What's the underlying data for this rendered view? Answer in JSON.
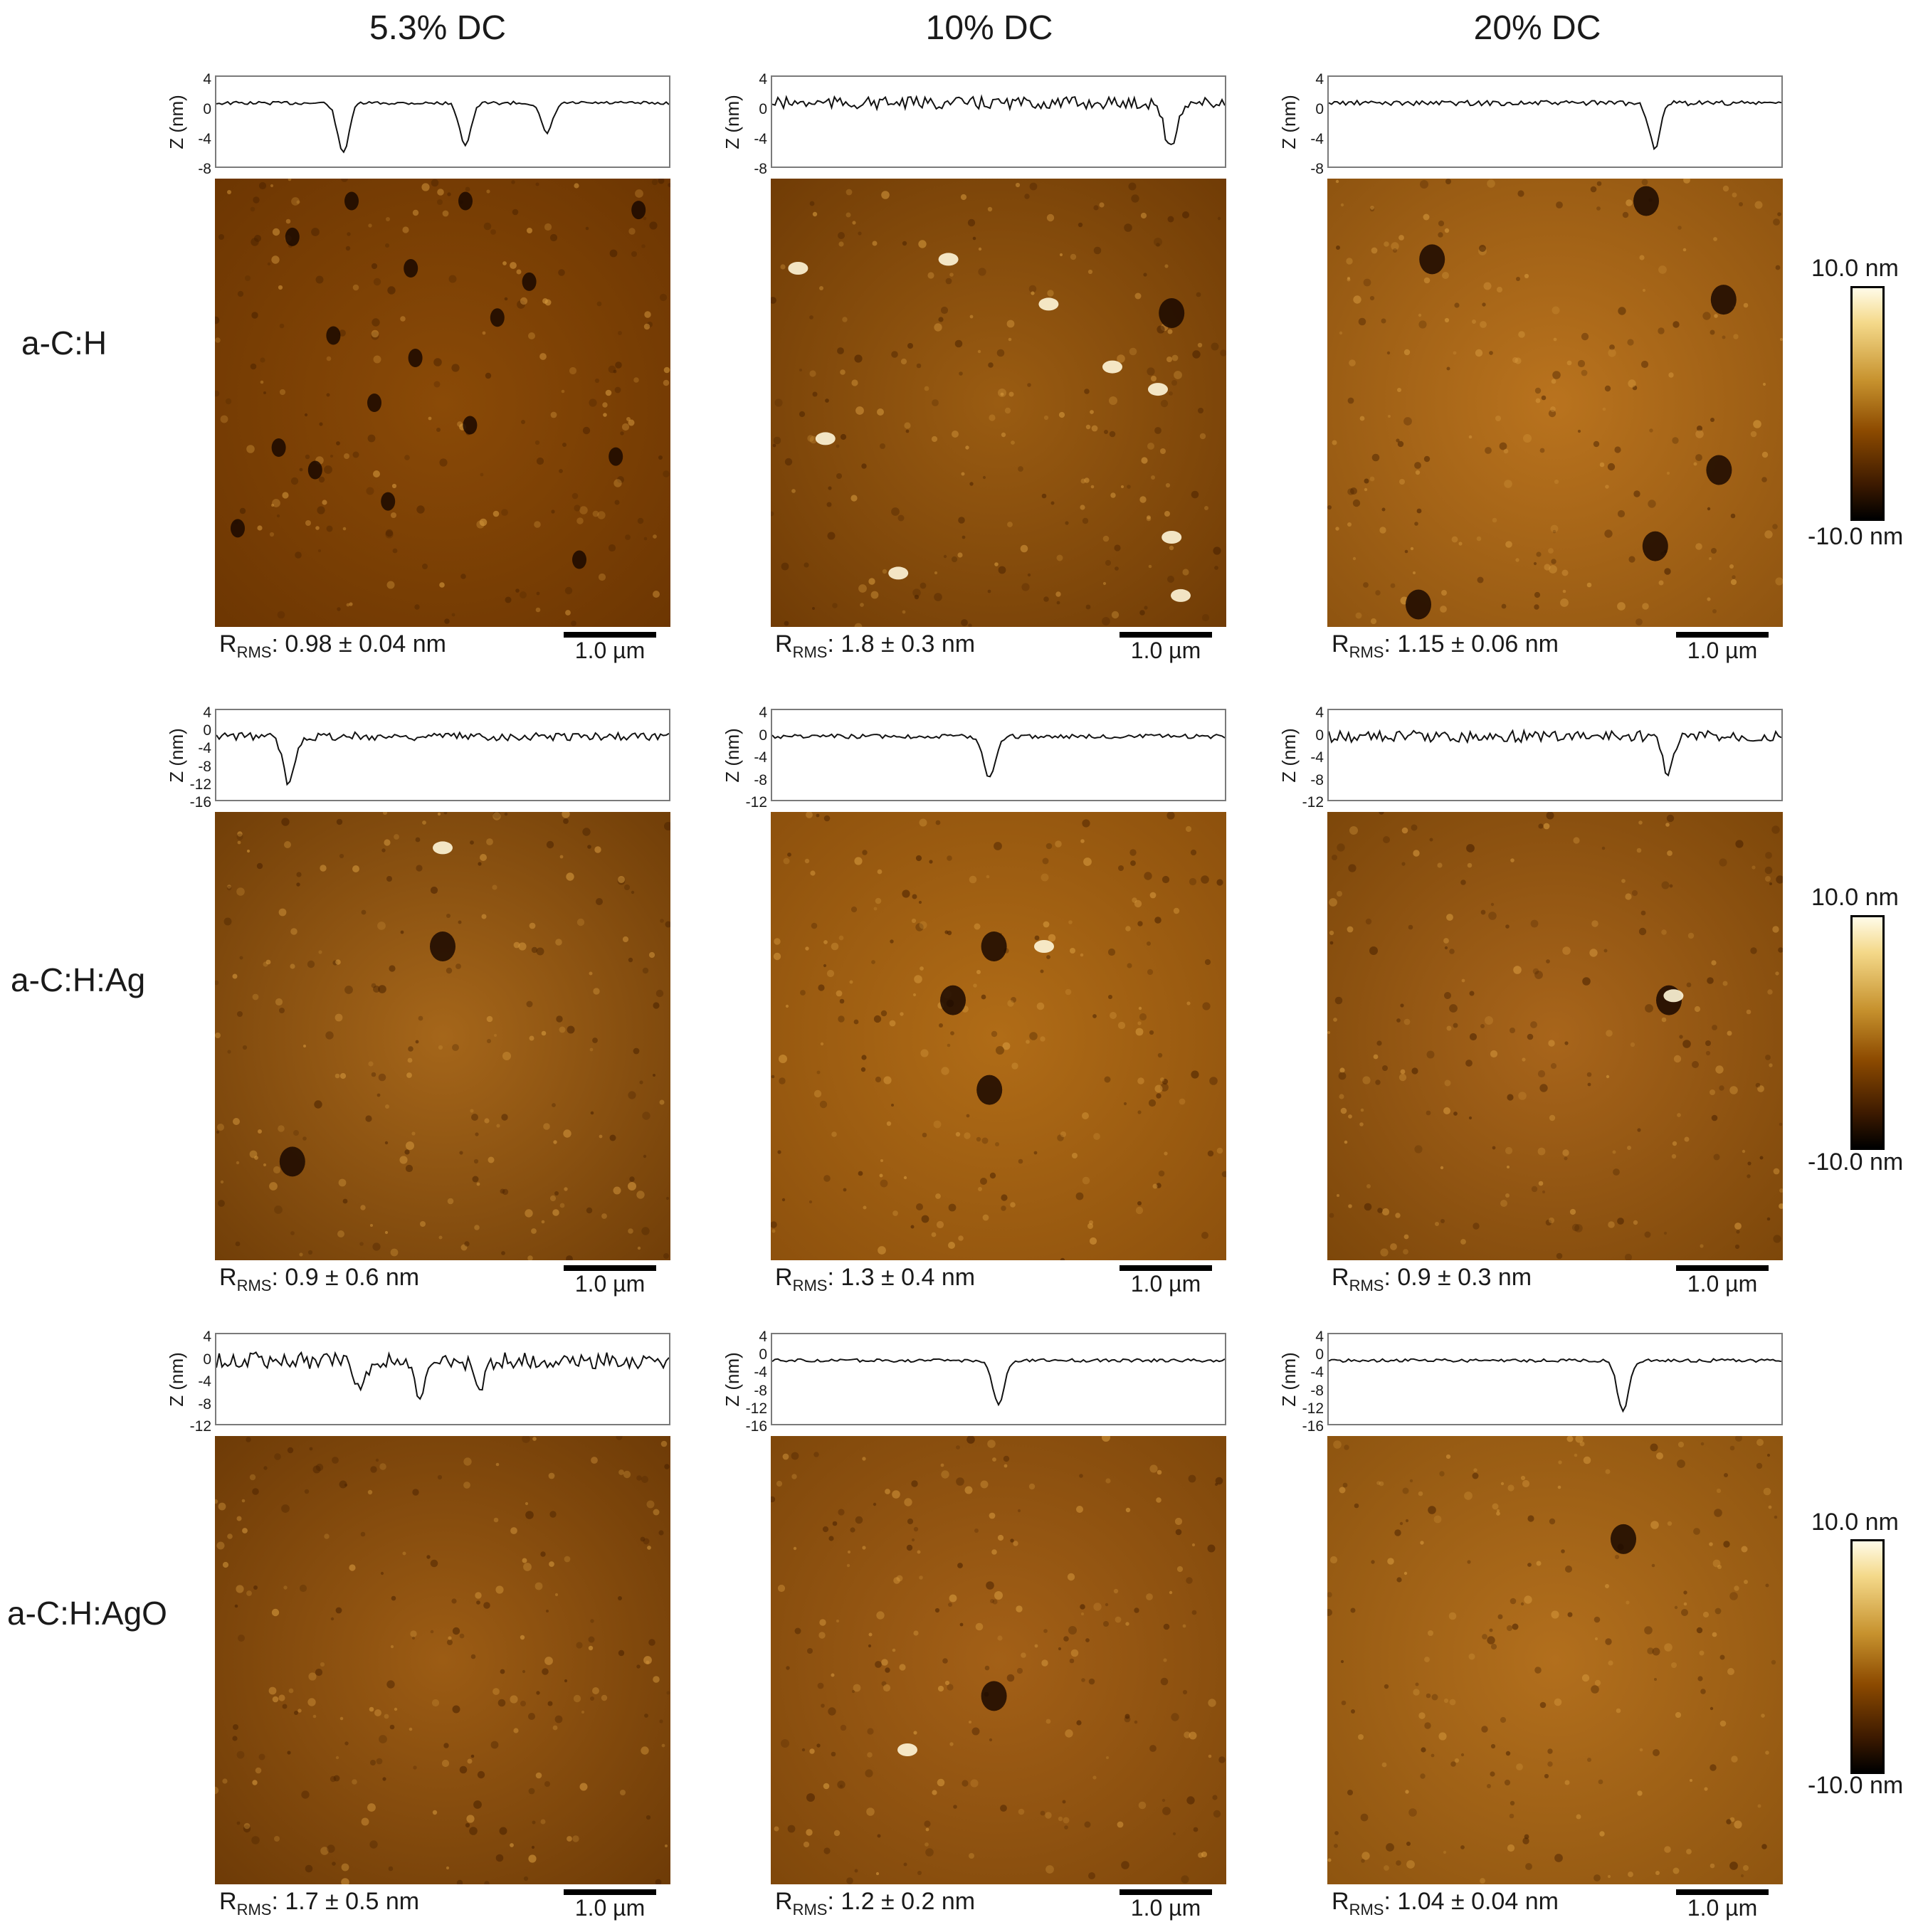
{
  "columns": [
    {
      "label": "5.3% DC"
    },
    {
      "label": "10% DC"
    },
    {
      "label": "20% DC"
    }
  ],
  "rows": [
    {
      "label": "a-C:H"
    },
    {
      "label": "a-C:H:Ag"
    },
    {
      "label": "a-C:H:AgO"
    }
  ],
  "z_axis_label": "Z (nm)",
  "rms_prefix": "R",
  "rms_sub": "RMS",
  "scale_bar": "1.0 µm",
  "colorbar": {
    "max": "10.0 nm",
    "min": "-10.0 nm"
  },
  "panels": [
    {
      "rms": ": 0.98 ± 0.04 nm",
      "ticks": [
        "4",
        "0",
        "-4",
        "-8"
      ]
    },
    {
      "rms": ": 1.8 ± 0.3 nm",
      "ticks": [
        "4",
        "0",
        "-4",
        "-8"
      ]
    },
    {
      "rms": ": 1.15 ± 0.06 nm",
      "ticks": [
        "4",
        "0",
        "-4",
        "-8"
      ]
    },
    {
      "rms": ": 0.9 ± 0.6 nm",
      "ticks": [
        "4",
        "0",
        "-4",
        "-8",
        "-12",
        "-16"
      ]
    },
    {
      "rms": ": 1.3 ± 0.4 nm",
      "ticks": [
        "4",
        "0",
        "-4",
        "-8",
        "-12"
      ]
    },
    {
      "rms": ": 0.9 ± 0.3 nm",
      "ticks": [
        "4",
        "0",
        "-4",
        "-8",
        "-12"
      ]
    },
    {
      "rms": ": 1.7 ± 0.5 nm",
      "ticks": [
        "4",
        "0",
        "-4",
        "-8",
        "-12"
      ]
    },
    {
      "rms": ": 1.2 ± 0.2 nm",
      "ticks": [
        "4",
        "0",
        "-4",
        "-8",
        "-12",
        "-16"
      ]
    },
    {
      "rms": ": 1.04 ± 0.04 nm",
      "ticks": [
        "4",
        "0",
        "-4",
        "-8",
        "-12",
        "-16"
      ]
    }
  ]
}
